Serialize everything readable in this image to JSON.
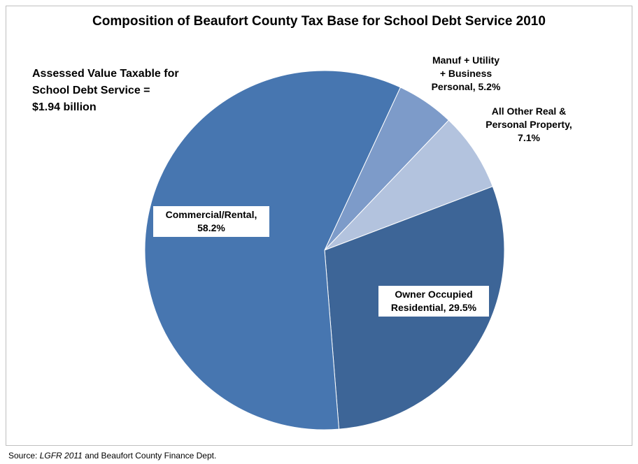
{
  "chart_data": {
    "type": "pie",
    "title": "Composition of Beaufort County Tax Base for School Debt Service 2010",
    "annotation": "Assessed Value Taxable for\nSchool Debt Service =\n$1.94 billion",
    "slices": [
      {
        "name": "Manuf + Utility\n+ Business\nPersonal",
        "value": 5.2,
        "label": "Manuf + Utility\n+ Business\nPersonal, 5.2%",
        "color": "#7d9bc9"
      },
      {
        "name": "All Other Real &\nPersonal Property",
        "value": 7.1,
        "label": "All Other Real &\nPersonal Property,\n7.1%",
        "color": "#b3c3de"
      },
      {
        "name": "Owner Occupied\nResidential",
        "value": 29.5,
        "label": "Owner Occupied\nResidential, 29.5%",
        "color": "#3d6597"
      },
      {
        "name": "Commercial/Rental",
        "value": 58.2,
        "label": "Commercial/Rental,\n58.2%",
        "color": "#4776b0"
      }
    ]
  },
  "source": {
    "prefix": "Source: ",
    "italic": "LGFR 2011",
    "suffix": " and Beaufort County Finance Dept."
  }
}
